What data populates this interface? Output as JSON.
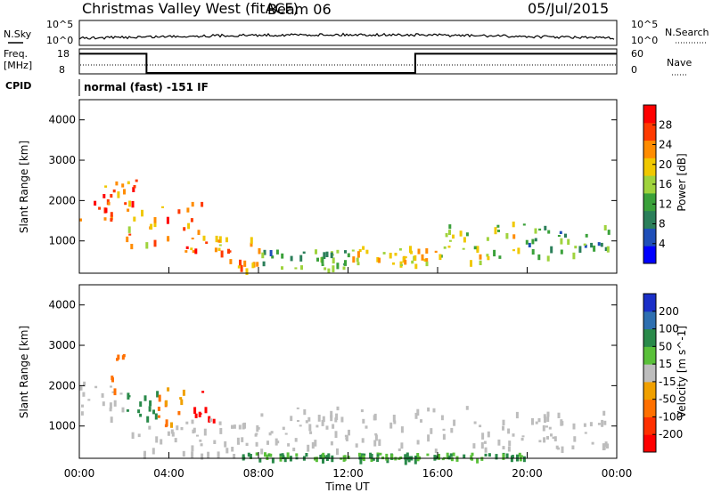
{
  "header": {
    "station": "Christmas Valley West (fitACF)",
    "beam": "Beam 06",
    "date": "05/Jul/2015"
  },
  "noise_panel": {
    "left_label": "N.Sky",
    "right_label": "N.Search",
    "left_ticks": [
      "10^5",
      "10^0"
    ],
    "right_ticks": [
      "10^5",
      "10^0"
    ]
  },
  "freq_panel": {
    "left_label_1": "Freq.",
    "left_label_2": "[MHz]",
    "right_label": "Nave",
    "left_ticks": [
      "18",
      "8"
    ],
    "right_ticks": [
      "60",
      "0"
    ],
    "freq_steps": [
      {
        "from": 0.0,
        "to": 3.0,
        "mhz": 17
      },
      {
        "from": 3.0,
        "to": 15.0,
        "mhz": 8
      },
      {
        "from": 15.0,
        "to": 24.0,
        "mhz": 17
      }
    ]
  },
  "cpid": {
    "label": "CPID",
    "value": "normal (fast) -151 IF"
  },
  "x_axis": {
    "title": "Time UT",
    "ticks": [
      "00:00",
      "04:00",
      "08:00",
      "12:00",
      "16:00",
      "20:00",
      "00:00"
    ],
    "range_hours": [
      0,
      24
    ]
  },
  "power_panel": {
    "ylabel": "Slant Range [km]",
    "yticks": [
      "4000",
      "3000",
      "2000",
      "1000"
    ],
    "colorbar_label": "Power [dB]",
    "colorbar_ticks": [
      "28",
      "24",
      "20",
      "16",
      "12",
      "8",
      "4"
    ],
    "colors": [
      "#0000ff",
      "#1f4fb8",
      "#2b7f5a",
      "#3aa13a",
      "#9fd33c",
      "#f0c800",
      "#ff8c00",
      "#ff3a00",
      "#ff0000"
    ]
  },
  "velocity_panel": {
    "ylabel": "Slant Range [km]",
    "yticks": [
      "4000",
      "3000",
      "2000",
      "1000"
    ],
    "colorbar_label": "Velocity [m s^-1]",
    "colorbar_ticks": [
      "200",
      "100",
      "50",
      "15",
      "-15",
      "-50",
      "-100",
      "-200"
    ],
    "colors": [
      "#1a2fc8",
      "#2e6fb0",
      "#2a8a4a",
      "#5ac03a",
      "#bdbdbd",
      "#f0a000",
      "#ff7000",
      "#ff3000",
      "#ff0000"
    ]
  },
  "chart_data": {
    "type": "heatmap",
    "x_unit": "hours UT",
    "y_unit": "km",
    "ylim": [
      200,
      4500
    ],
    "xlim": [
      0,
      24
    ],
    "power_regions": [
      {
        "t0": 0.0,
        "t1": 1.5,
        "r0": 1500,
        "r1": 2200,
        "power": 26
      },
      {
        "t0": 1.0,
        "t1": 2.5,
        "r0": 1900,
        "r1": 2700,
        "power": 24
      },
      {
        "t0": 2.0,
        "t1": 3.5,
        "r0": 900,
        "r1": 1800,
        "power": 22
      },
      {
        "t0": 3.5,
        "t1": 5.5,
        "r0": 700,
        "r1": 2000,
        "power": 24
      },
      {
        "t0": 5.0,
        "t1": 8.0,
        "r0": 300,
        "r1": 1200,
        "power": 22
      },
      {
        "t0": 8.0,
        "t1": 12.0,
        "r0": 300,
        "r1": 800,
        "power": 12
      },
      {
        "t0": 12.0,
        "t1": 16.0,
        "r0": 400,
        "r1": 900,
        "power": 18
      },
      {
        "t0": 16.0,
        "t1": 20.0,
        "r0": 500,
        "r1": 1500,
        "power": 16
      },
      {
        "t0": 20.0,
        "t1": 23.7,
        "r0": 600,
        "r1": 1400,
        "power": 12
      }
    ],
    "velocity_regions": [
      {
        "t0": 0.0,
        "t1": 2.0,
        "r0": 1200,
        "r1": 2200,
        "velocity": 0
      },
      {
        "t0": 1.2,
        "t1": 2.0,
        "r0": 1900,
        "r1": 2800,
        "velocity": -60
      },
      {
        "t0": 2.0,
        "t1": 3.5,
        "r0": 1100,
        "r1": 1900,
        "velocity": 40
      },
      {
        "t0": 3.5,
        "t1": 5.0,
        "r0": 1000,
        "r1": 2000,
        "velocity": -50
      },
      {
        "t0": 5.0,
        "t1": 6.0,
        "r0": 1100,
        "r1": 1900,
        "velocity": -180
      },
      {
        "t0": 2.0,
        "t1": 8.0,
        "r0": 300,
        "r1": 1200,
        "velocity": 0
      },
      {
        "t0": 8.0,
        "t1": 23.7,
        "r0": 400,
        "r1": 1500,
        "velocity": 0
      },
      {
        "t0": 7.0,
        "t1": 20.0,
        "r0": 200,
        "r1": 350,
        "velocity": 30
      }
    ]
  }
}
